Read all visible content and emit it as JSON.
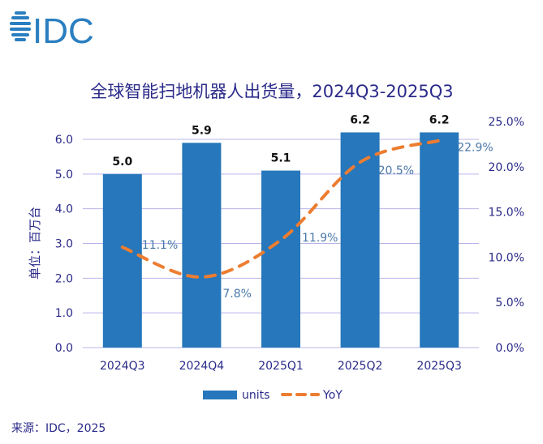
{
  "logo": {
    "text": "IDC",
    "color": "#2a7fc0"
  },
  "chart_data": {
    "type": "bar+line",
    "title": "全球智能扫地机器人出货量，2024Q3-2025Q3",
    "ylabel": "单位：百万台",
    "categories": [
      "2024Q3",
      "2024Q4",
      "2025Q1",
      "2025Q2",
      "2025Q3"
    ],
    "series": [
      {
        "name": "units",
        "type": "bar",
        "axis": "left",
        "values": [
          5.0,
          5.9,
          5.1,
          6.2,
          6.2
        ],
        "labels": [
          "5.0",
          "5.9",
          "5.1",
          "6.2",
          "6.2"
        ],
        "color": "#2677bb"
      },
      {
        "name": "YoY",
        "type": "line",
        "style": "dashed",
        "axis": "right",
        "values": [
          11.1,
          7.8,
          11.9,
          20.5,
          22.9
        ],
        "labels": [
          "11.1%",
          "7.8%",
          "11.9%",
          "20.5%",
          "22.9%"
        ],
        "color": "#ed7d31"
      }
    ],
    "left_axis": {
      "ylim": [
        0,
        6.0
      ],
      "ticks": [
        "0.0",
        "1.0",
        "2.0",
        "3.0",
        "4.0",
        "5.0",
        "6.0"
      ]
    },
    "right_axis": {
      "ylim": [
        0,
        25
      ],
      "ticks": [
        "0.0%",
        "5.0%",
        "10.0%",
        "15.0%",
        "20.0%",
        "25.0%"
      ]
    },
    "grid": true,
    "legend": "bottom"
  },
  "source": "来源：IDC，2025"
}
